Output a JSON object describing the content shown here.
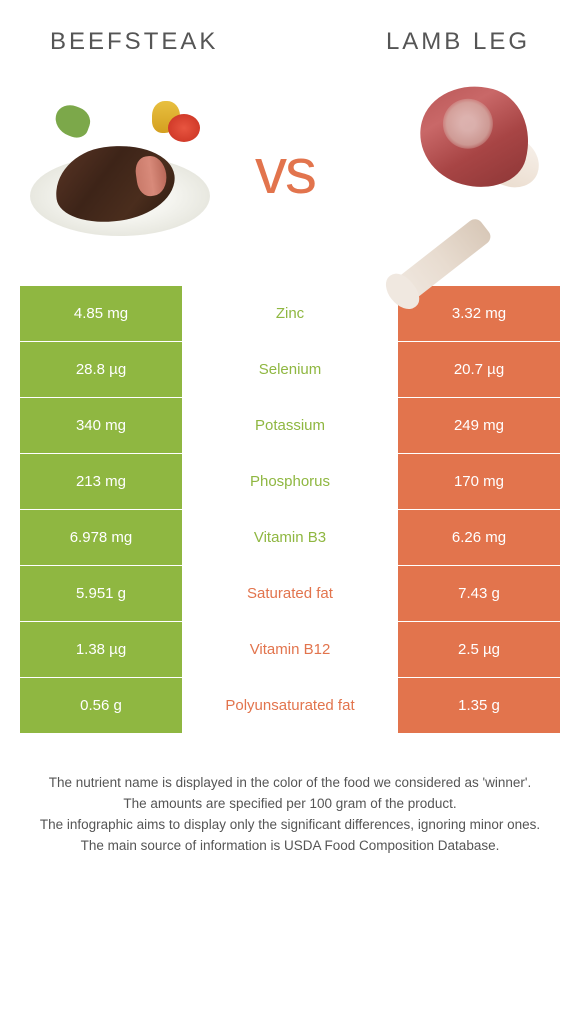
{
  "left_title": "Beefsteak",
  "right_title": "Lamb leg",
  "vs_text": "vs",
  "colors": {
    "left": "#8fb741",
    "right": "#e2744d",
    "left_text": "#8fb741",
    "right_text": "#e2744d",
    "body_text": "#555555"
  },
  "nutrients": [
    {
      "name": "Zinc",
      "left": "4.85 mg",
      "right": "3.32 mg",
      "winner": "left"
    },
    {
      "name": "Selenium",
      "left": "28.8 µg",
      "right": "20.7 µg",
      "winner": "left"
    },
    {
      "name": "Potassium",
      "left": "340 mg",
      "right": "249 mg",
      "winner": "left"
    },
    {
      "name": "Phosphorus",
      "left": "213 mg",
      "right": "170 mg",
      "winner": "left"
    },
    {
      "name": "Vitamin B3",
      "left": "6.978 mg",
      "right": "6.26 mg",
      "winner": "left"
    },
    {
      "name": "Saturated fat",
      "left": "5.951 g",
      "right": "7.43 g",
      "winner": "right"
    },
    {
      "name": "Vitamin B12",
      "left": "1.38 µg",
      "right": "2.5 µg",
      "winner": "right"
    },
    {
      "name": "Polyunsaturated fat",
      "left": "0.56 g",
      "right": "1.35 g",
      "winner": "right"
    }
  ],
  "footnotes": [
    "The nutrient name is displayed in the color of the food we considered as 'winner'.",
    "The amounts are specified per 100 gram of the product.",
    "The infographic aims to display only the significant differences, ignoring minor ones.",
    "The main source of information is USDA Food Composition Database."
  ]
}
